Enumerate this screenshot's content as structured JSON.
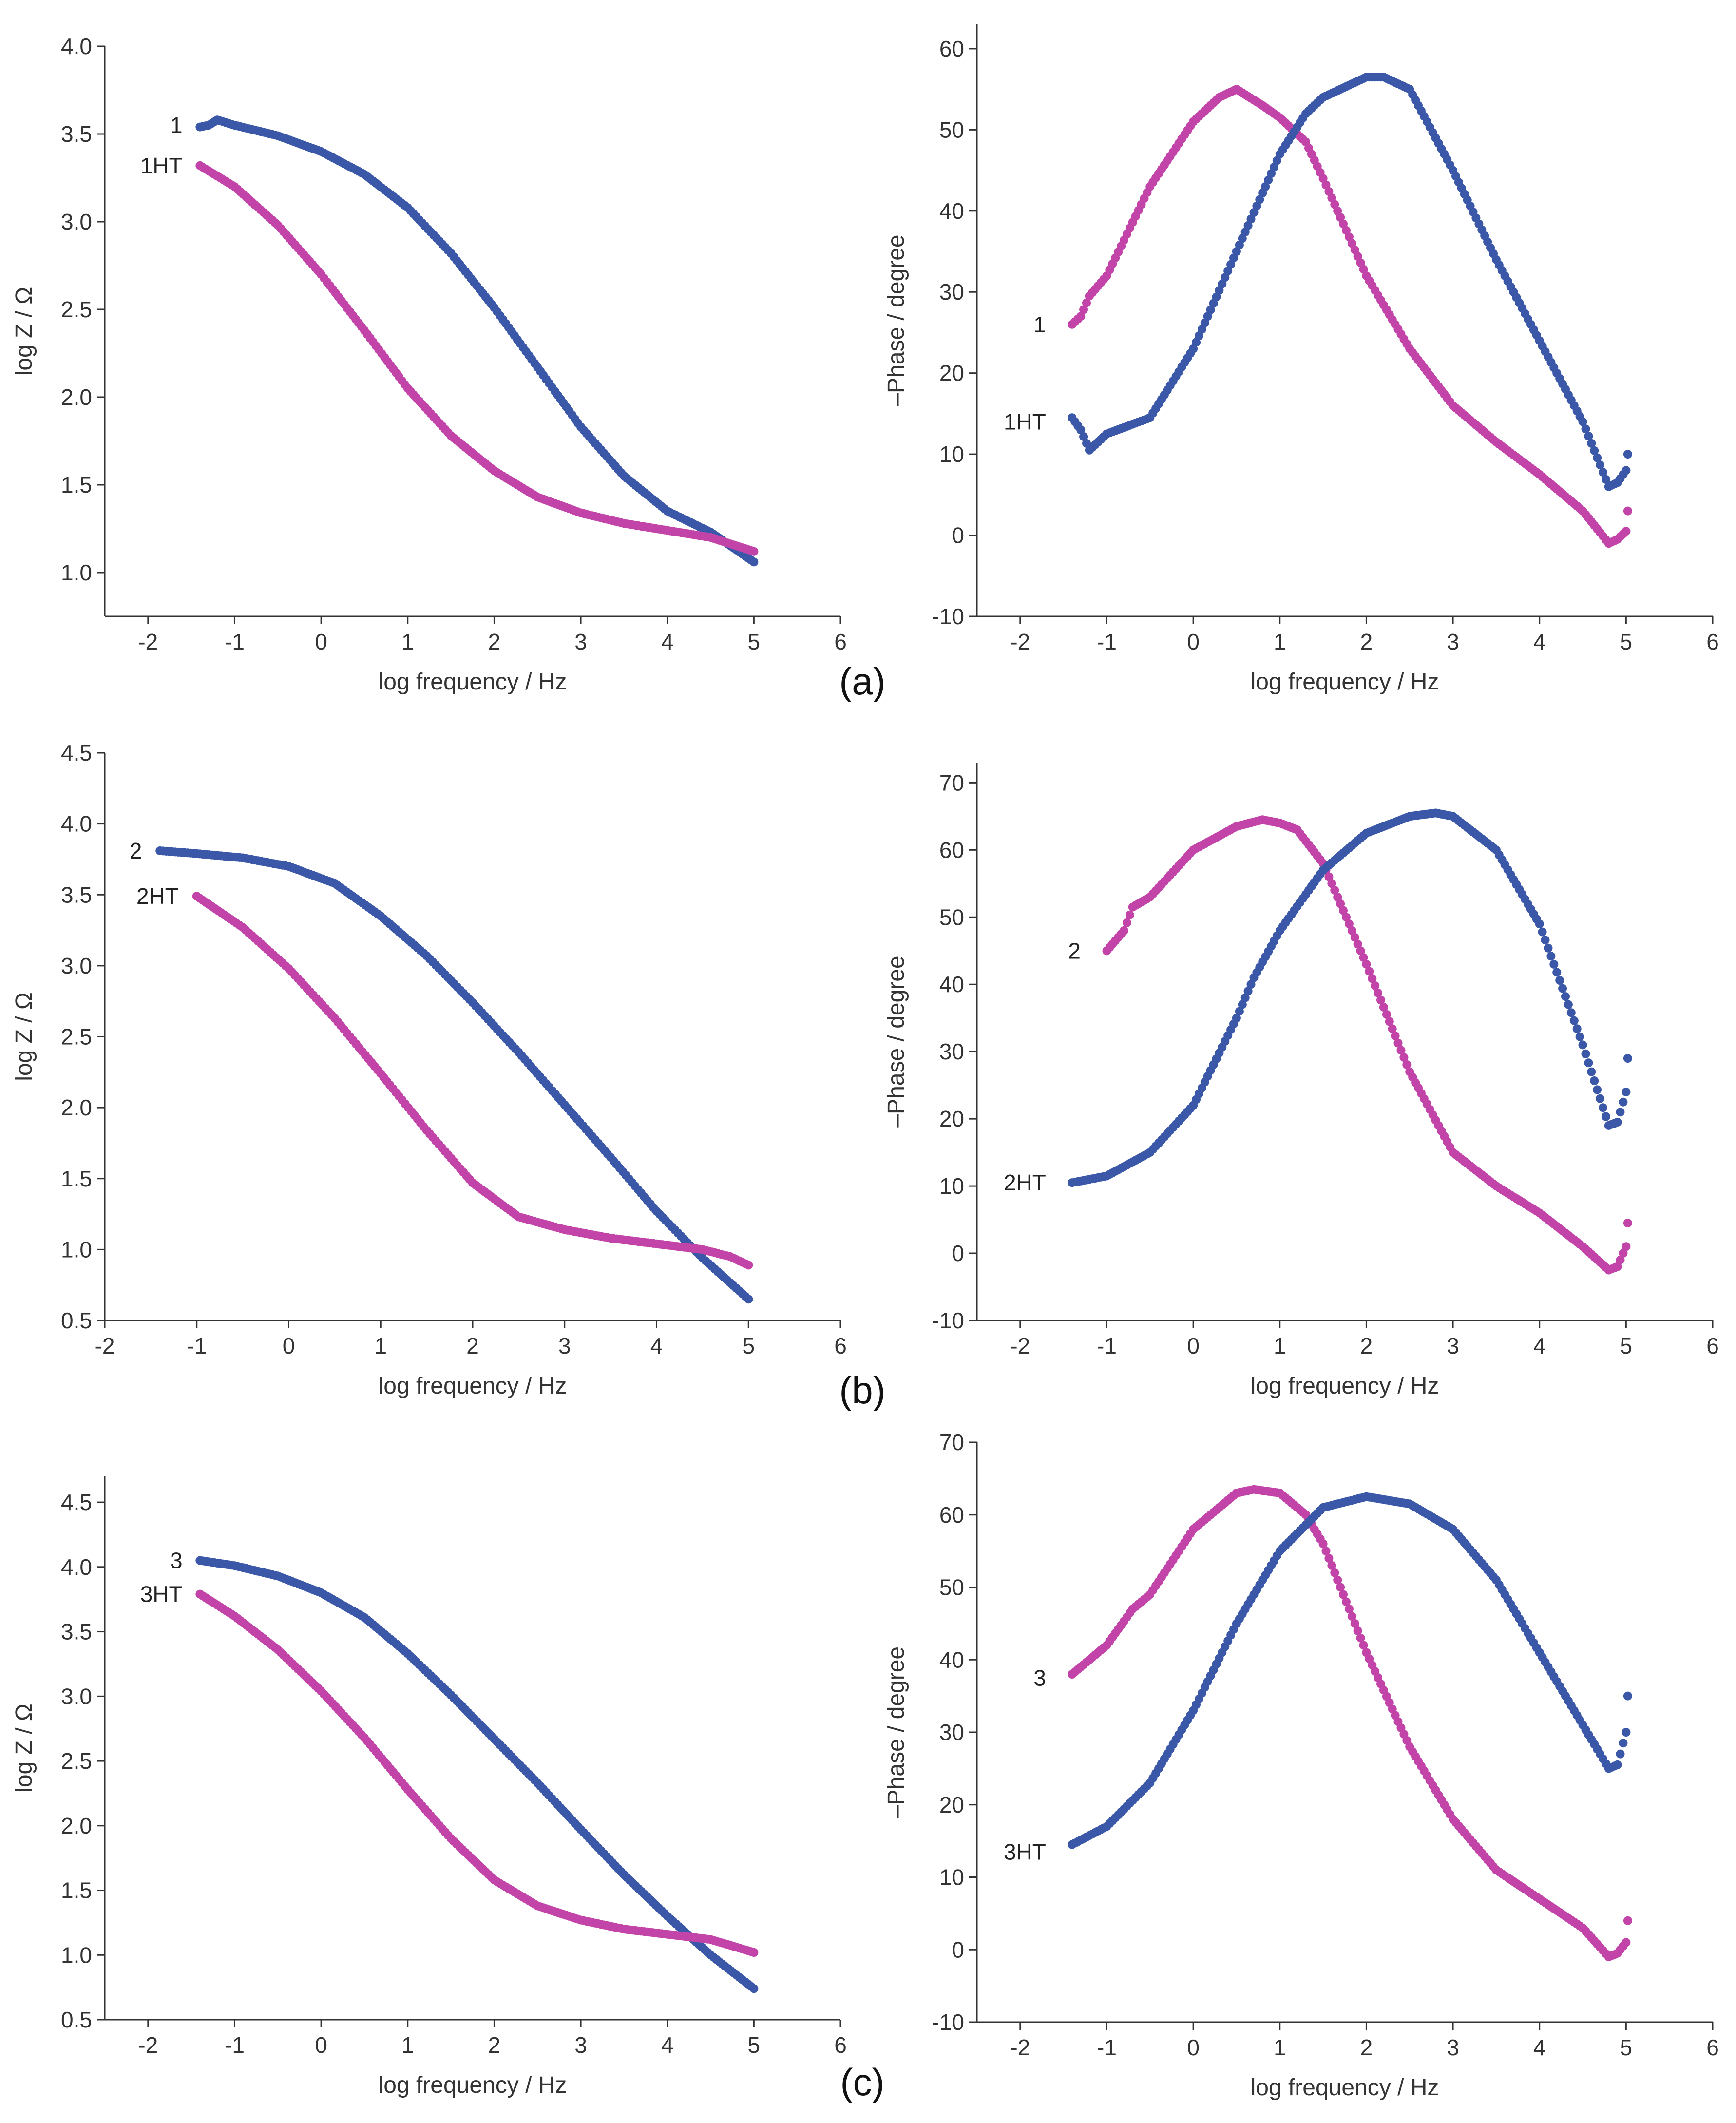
{
  "colors": {
    "blue": "#3a57a8",
    "magenta": "#c244a8"
  },
  "panels": [
    {
      "label": "(a)"
    },
    {
      "label": "(b)"
    },
    {
      "label": "(c)"
    }
  ],
  "chart_data": [
    {
      "type": "scatter",
      "xlabel": "log frequency / Hz",
      "ylabel": "log Z / Ω",
      "xlim": [
        -2.5,
        6
      ],
      "ylim": [
        0.75,
        4.0
      ],
      "xticks": [
        -2,
        -1,
        0,
        1,
        2,
        3,
        4,
        5,
        6
      ],
      "yticks": [
        1.0,
        1.5,
        2.0,
        2.5,
        3.0,
        3.5,
        4.0
      ],
      "series": [
        {
          "name": "1",
          "color": "blue",
          "points": [
            [
              -1.4,
              3.54
            ],
            [
              -1.3,
              3.55
            ],
            [
              -1.2,
              3.58
            ],
            [
              -1,
              3.55
            ],
            [
              -0.5,
              3.49
            ],
            [
              0,
              3.4
            ],
            [
              0.5,
              3.27
            ],
            [
              1,
              3.08
            ],
            [
              1.5,
              2.82
            ],
            [
              2,
              2.51
            ],
            [
              2.5,
              2.17
            ],
            [
              3,
              1.83
            ],
            [
              3.5,
              1.55
            ],
            [
              4,
              1.35
            ],
            [
              4.5,
              1.23
            ],
            [
              5,
              1.06
            ]
          ],
          "label_pos": [
            -1.5,
            3.55
          ]
        },
        {
          "name": "1HT",
          "color": "magenta",
          "points": [
            [
              -1.4,
              3.32
            ],
            [
              -1,
              3.2
            ],
            [
              -0.5,
              2.98
            ],
            [
              0,
              2.7
            ],
            [
              0.5,
              2.38
            ],
            [
              1,
              2.05
            ],
            [
              1.5,
              1.78
            ],
            [
              2,
              1.58
            ],
            [
              2.5,
              1.43
            ],
            [
              3,
              1.34
            ],
            [
              3.5,
              1.28
            ],
            [
              4,
              1.24
            ],
            [
              4.5,
              1.2
            ],
            [
              5,
              1.12
            ]
          ],
          "label_pos": [
            -1.5,
            3.32
          ]
        }
      ]
    },
    {
      "type": "scatter",
      "xlabel": "log frequency / Hz",
      "ylabel": "–Phase / degree",
      "xlim": [
        -2.5,
        6
      ],
      "ylim": [
        -10,
        63
      ],
      "xticks": [
        -2,
        -1,
        0,
        1,
        2,
        3,
        4,
        5,
        6
      ],
      "yticks": [
        -10,
        0,
        10,
        20,
        30,
        40,
        50,
        60
      ],
      "series": [
        {
          "name": "1",
          "color": "magenta",
          "points": [
            [
              -1.4,
              26
            ],
            [
              -1.3,
              27
            ],
            [
              -1.2,
              29.5
            ],
            [
              -1,
              32
            ],
            [
              -0.5,
              43
            ],
            [
              0,
              51
            ],
            [
              0.3,
              54
            ],
            [
              0.5,
              55
            ],
            [
              0.8,
              53
            ],
            [
              1,
              51.5
            ],
            [
              1.3,
              48.5
            ],
            [
              1.5,
              44
            ],
            [
              2,
              32
            ],
            [
              2.5,
              23
            ],
            [
              3,
              16
            ],
            [
              3.5,
              11.5
            ],
            [
              4,
              7.5
            ],
            [
              4.5,
              3
            ],
            [
              4.8,
              -1
            ],
            [
              4.9,
              -0.5
            ],
            [
              5,
              0.5
            ],
            [
              5.02,
              3
            ]
          ],
          "label_pos": [
            -1.6,
            26
          ]
        },
        {
          "name": "1HT",
          "color": "blue",
          "points": [
            [
              -1.4,
              14.5
            ],
            [
              -1.3,
              13
            ],
            [
              -1.2,
              10.5
            ],
            [
              -1,
              12.5
            ],
            [
              -0.5,
              14.5
            ],
            [
              0,
              23
            ],
            [
              0.5,
              35
            ],
            [
              1,
              47
            ],
            [
              1.3,
              52
            ],
            [
              1.5,
              54
            ],
            [
              2,
              56.5
            ],
            [
              2.2,
              56.5
            ],
            [
              2.5,
              55
            ],
            [
              3,
              45
            ],
            [
              3.5,
              34
            ],
            [
              4,
              24
            ],
            [
              4.5,
              14
            ],
            [
              4.8,
              6
            ],
            [
              4.9,
              6.5
            ],
            [
              5,
              8
            ],
            [
              5.02,
              10
            ]
          ],
          "label_pos": [
            -1.6,
            14
          ]
        }
      ]
    },
    {
      "type": "scatter",
      "xlabel": "log frequency / Hz",
      "ylabel": "log Z / Ω",
      "xlim": [
        -2,
        6
      ],
      "ylim": [
        0.5,
        4.5
      ],
      "xticks": [
        -2,
        -1,
        0,
        1,
        2,
        3,
        4,
        5,
        6
      ],
      "yticks": [
        0.5,
        1.0,
        1.5,
        2.0,
        2.5,
        3.0,
        3.5,
        4.0,
        4.5
      ],
      "series": [
        {
          "name": "2",
          "color": "blue",
          "points": [
            [
              -1.4,
              3.81
            ],
            [
              -1,
              3.79
            ],
            [
              -0.5,
              3.76
            ],
            [
              0,
              3.7
            ],
            [
              0.5,
              3.58
            ],
            [
              1,
              3.35
            ],
            [
              1.5,
              3.07
            ],
            [
              2,
              2.74
            ],
            [
              2.5,
              2.39
            ],
            [
              3,
              2.02
            ],
            [
              3.5,
              1.65
            ],
            [
              4,
              1.27
            ],
            [
              4.5,
              0.94
            ],
            [
              5,
              0.65
            ]
          ],
          "label_pos": [
            -1.5,
            3.81
          ]
        },
        {
          "name": "2HT",
          "color": "magenta",
          "points": [
            [
              -1,
              3.49
            ],
            [
              -0.5,
              3.27
            ],
            [
              0,
              2.98
            ],
            [
              0.5,
              2.63
            ],
            [
              1,
              2.24
            ],
            [
              1.5,
              1.84
            ],
            [
              2,
              1.47
            ],
            [
              2.5,
              1.23
            ],
            [
              3,
              1.14
            ],
            [
              3.5,
              1.08
            ],
            [
              4,
              1.04
            ],
            [
              4.5,
              1.0
            ],
            [
              4.8,
              0.95
            ],
            [
              5,
              0.89
            ]
          ],
          "label_pos": [
            -1.1,
            3.49
          ]
        }
      ]
    },
    {
      "type": "scatter",
      "xlabel": "log frequency / Hz",
      "ylabel": "–Phase / degree",
      "xlim": [
        -2.5,
        6
      ],
      "ylim": [
        -10,
        73
      ],
      "xticks": [
        -2,
        -1,
        0,
        1,
        2,
        3,
        4,
        5,
        6
      ],
      "yticks": [
        -10,
        0,
        10,
        20,
        30,
        40,
        50,
        60,
        70
      ],
      "series": [
        {
          "name": "2",
          "color": "magenta",
          "points": [
            [
              -1,
              45
            ],
            [
              -0.8,
              48
            ],
            [
              -0.7,
              51.5
            ],
            [
              -0.5,
              53
            ],
            [
              0,
              60
            ],
            [
              0.5,
              63.5
            ],
            [
              0.8,
              64.5
            ],
            [
              1,
              64
            ],
            [
              1.2,
              63
            ],
            [
              1.5,
              58
            ],
            [
              2,
              43
            ],
            [
              2.5,
              27
            ],
            [
              3,
              15
            ],
            [
              3.5,
              10
            ],
            [
              4,
              6
            ],
            [
              4.5,
              1
            ],
            [
              4.8,
              -2.5
            ],
            [
              4.9,
              -2
            ],
            [
              5,
              1
            ],
            [
              5.02,
              4.5
            ]
          ],
          "label_pos": [
            -1.2,
            45
          ]
        },
        {
          "name": "2HT",
          "color": "blue",
          "points": [
            [
              -1.4,
              10.5
            ],
            [
              -1,
              11.5
            ],
            [
              -0.5,
              15
            ],
            [
              0,
              22
            ],
            [
              0.5,
              35
            ],
            [
              0.7,
              41
            ],
            [
              1,
              48
            ],
            [
              1.5,
              57
            ],
            [
              2,
              62.5
            ],
            [
              2.5,
              65
            ],
            [
              2.8,
              65.5
            ],
            [
              3,
              65
            ],
            [
              3.5,
              60
            ],
            [
              4,
              49
            ],
            [
              4.5,
              31
            ],
            [
              4.8,
              19
            ],
            [
              4.9,
              19.5
            ],
            [
              5,
              24
            ],
            [
              5.02,
              29
            ]
          ],
          "label_pos": [
            -1.6,
            10.5
          ]
        }
      ]
    },
    {
      "type": "scatter",
      "xlabel": "log frequency / Hz",
      "ylabel": "log Z / Ω",
      "xlim": [
        -2.5,
        6
      ],
      "ylim": [
        0.5,
        4.7
      ],
      "xticks": [
        -2,
        -1,
        0,
        1,
        2,
        3,
        4,
        5,
        6
      ],
      "yticks": [
        0.5,
        1.0,
        1.5,
        2.0,
        2.5,
        3.0,
        3.5,
        4.0,
        4.5
      ],
      "series": [
        {
          "name": "3",
          "color": "blue",
          "points": [
            [
              -1.4,
              4.05
            ],
            [
              -1,
              4.01
            ],
            [
              -0.5,
              3.93
            ],
            [
              0,
              3.8
            ],
            [
              0.5,
              3.61
            ],
            [
              1,
              3.33
            ],
            [
              1.5,
              3.01
            ],
            [
              2,
              2.67
            ],
            [
              2.5,
              2.33
            ],
            [
              3,
              1.97
            ],
            [
              3.5,
              1.62
            ],
            [
              4,
              1.3
            ],
            [
              4.5,
              1.0
            ],
            [
              5,
              0.74
            ]
          ],
          "label_pos": [
            -1.5,
            4.05
          ]
        },
        {
          "name": "3HT",
          "color": "magenta",
          "points": [
            [
              -1.4,
              3.79
            ],
            [
              -1,
              3.62
            ],
            [
              -0.5,
              3.36
            ],
            [
              0,
              3.04
            ],
            [
              0.5,
              2.68
            ],
            [
              1,
              2.28
            ],
            [
              1.5,
              1.9
            ],
            [
              2,
              1.58
            ],
            [
              2.5,
              1.38
            ],
            [
              3,
              1.27
            ],
            [
              3.5,
              1.2
            ],
            [
              4,
              1.16
            ],
            [
              4.5,
              1.12
            ],
            [
              5,
              1.02
            ]
          ],
          "label_pos": [
            -1.5,
            3.79
          ]
        }
      ]
    },
    {
      "type": "scatter",
      "xlabel": "log frequency / Hz",
      "ylabel": "–Phase / degree",
      "xlim": [
        -2.5,
        6
      ],
      "ylim": [
        -10,
        70
      ],
      "xticks": [
        -2,
        -1,
        0,
        1,
        2,
        3,
        4,
        5,
        6
      ],
      "yticks": [
        -10,
        0,
        10,
        20,
        30,
        40,
        50,
        60,
        70
      ],
      "series": [
        {
          "name": "3",
          "color": "magenta",
          "points": [
            [
              -1.4,
              38
            ],
            [
              -1,
              42
            ],
            [
              -0.7,
              47
            ],
            [
              -0.5,
              49
            ],
            [
              0,
              58
            ],
            [
              0.5,
              63
            ],
            [
              0.7,
              63.5
            ],
            [
              1,
              63
            ],
            [
              1.3,
              60
            ],
            [
              1.5,
              56
            ],
            [
              2,
              41
            ],
            [
              2.5,
              28
            ],
            [
              3,
              18
            ],
            [
              3.5,
              11
            ],
            [
              4,
              7
            ],
            [
              4.5,
              3
            ],
            [
              4.8,
              -1
            ],
            [
              4.9,
              -0.5
            ],
            [
              5,
              1
            ],
            [
              5.02,
              4
            ]
          ],
          "label_pos": [
            -1.6,
            37.5
          ]
        },
        {
          "name": "3HT",
          "color": "blue",
          "points": [
            [
              -1.4,
              14.5
            ],
            [
              -1,
              17
            ],
            [
              -0.5,
              23
            ],
            [
              -0.4,
              25
            ],
            [
              0,
              33
            ],
            [
              0.5,
              45
            ],
            [
              1,
              55
            ],
            [
              1.5,
              61
            ],
            [
              2,
              62.5
            ],
            [
              2.5,
              61.5
            ],
            [
              3,
              58
            ],
            [
              3.5,
              51
            ],
            [
              4,
              41
            ],
            [
              4.5,
              31
            ],
            [
              4.8,
              25
            ],
            [
              4.9,
              25.5
            ],
            [
              5,
              30
            ],
            [
              5.02,
              35
            ]
          ],
          "label_pos": [
            -1.6,
            13.5
          ]
        }
      ]
    }
  ]
}
